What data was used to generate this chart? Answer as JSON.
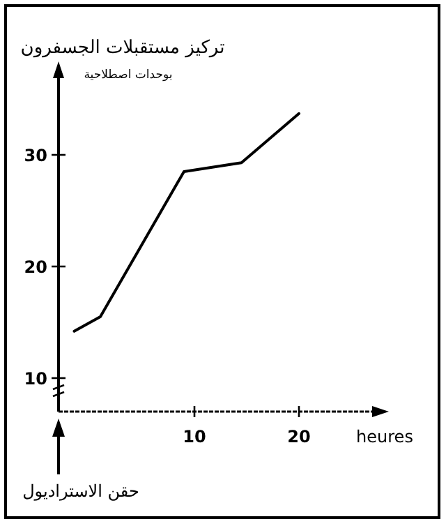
{
  "chart_data": {
    "type": "line",
    "title": "تركيز مستقبلات الجسفرون",
    "subtitle": "بوحدات اصطلاحية",
    "xlabel": "heures",
    "x": [
      -1.5,
      1,
      9,
      14.5,
      20
    ],
    "values": [
      14.2,
      15.5,
      28.5,
      29.3,
      33.7
    ],
    "color": "#000000",
    "xlim": [
      -3,
      27
    ],
    "ylim": [
      7,
      37
    ],
    "xticks": [
      10,
      20
    ],
    "yticks": [
      10,
      20,
      30
    ],
    "grid": false,
    "marker": "none",
    "line_style": "solid",
    "annotations": [
      "حقن الاستراديول"
    ]
  }
}
